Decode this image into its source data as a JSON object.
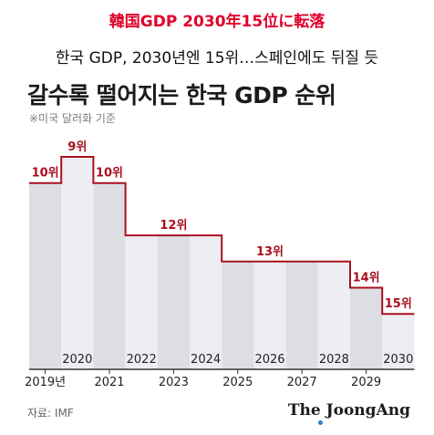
{
  "overlay_title": "韓国GDP 2030年15位に転落",
  "headline": "한국 GDP, 2030년엔 15위…스페인에도 뒤질 듯",
  "chart_data": {
    "type": "step",
    "title": "갈수록 떨어지는 한국 GDP 순위",
    "subtitle": "※미국 달러화 기준",
    "source": "자료: IMF",
    "brand": "The JoongAng",
    "x_labels": [
      "2019년",
      "2020",
      "2021",
      "2022",
      "2023",
      "2024",
      "2025",
      "2026",
      "2027",
      "2028",
      "2029",
      "2030"
    ],
    "values": [
      10,
      9,
      10,
      12,
      12,
      12,
      13,
      13,
      13,
      13,
      14,
      15
    ],
    "value_suffix": "위",
    "rank_labels": [
      {
        "index": 0,
        "text": "10위"
      },
      {
        "index": 1,
        "text": "9위"
      },
      {
        "index": 2,
        "text": "10위"
      },
      {
        "index": 4,
        "text": "12위"
      },
      {
        "index": 7,
        "text": "13위"
      },
      {
        "index": 10,
        "text": "14위"
      },
      {
        "index": 11,
        "text": "15위"
      }
    ],
    "colors": {
      "line": "#a8101f",
      "label": "#a8101f",
      "fill_dark": "#dcdee3",
      "fill_light": "#eceef1",
      "axis": "#333333"
    }
  }
}
